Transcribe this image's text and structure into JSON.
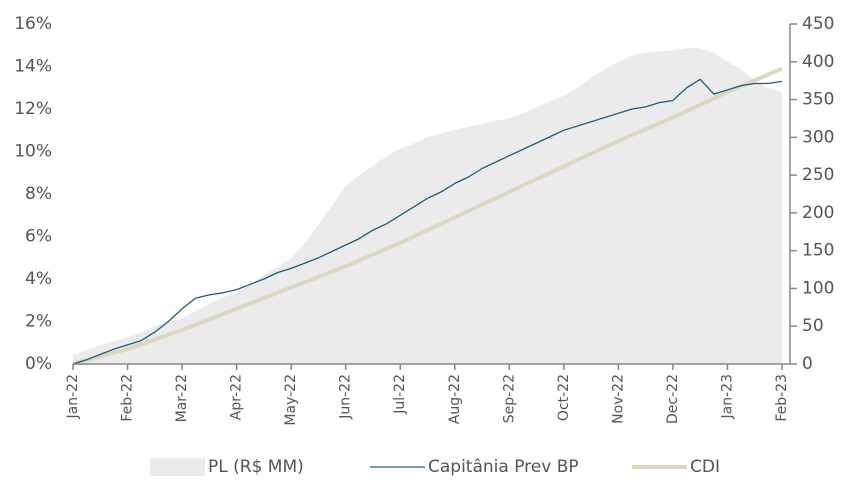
{
  "chart_data": {
    "type": "line",
    "categories": [
      "Jan-22",
      null,
      null,
      null,
      "Feb-22",
      null,
      null,
      null,
      "Mar-22",
      null,
      null,
      null,
      "Apr-22",
      null,
      null,
      null,
      "May-22",
      null,
      null,
      null,
      "Jun-22",
      null,
      null,
      null,
      "Jul-22",
      null,
      null,
      null,
      "Aug-22",
      null,
      null,
      null,
      "Sep-22",
      null,
      null,
      null,
      "Oct-22",
      null,
      null,
      null,
      "Nov-22",
      null,
      null,
      null,
      "Dec-22",
      null,
      null,
      null,
      "Jan-23",
      null,
      null,
      null,
      "Feb-23"
    ],
    "series": [
      {
        "name": "PL (R$ MM)",
        "type": "area",
        "axis": "y2",
        "color": "#ebebeb",
        "values": [
          12,
          18,
          25,
          30,
          35,
          42,
          50,
          55,
          60,
          70,
          80,
          88,
          95,
          105,
          118,
          128,
          140,
          160,
          185,
          210,
          235,
          250,
          262,
          275,
          285,
          292,
          300,
          305,
          310,
          314,
          318,
          322,
          325,
          332,
          340,
          348,
          355,
          366,
          378,
          390,
          400,
          408,
          412,
          414,
          415,
          418,
          418,
          412,
          400,
          390,
          375,
          365,
          360
        ]
      },
      {
        "name": "Capitânia Prev BP",
        "type": "line",
        "color": "#1f5c7a",
        "values": [
          0,
          0.2,
          0.45,
          0.7,
          0.9,
          1.1,
          1.5,
          2.0,
          2.6,
          3.1,
          3.25,
          3.35,
          3.5,
          3.75,
          4.0,
          4.3,
          4.5,
          4.75,
          5.0,
          5.3,
          5.6,
          5.9,
          6.3,
          6.6,
          7.0,
          7.4,
          7.8,
          8.1,
          8.5,
          8.8,
          9.2,
          9.5,
          9.8,
          10.1,
          10.4,
          10.7,
          11.0,
          11.2,
          11.4,
          11.6,
          11.8,
          12.0,
          12.1,
          12.3,
          12.4,
          13.0,
          13.4,
          12.7,
          12.9,
          13.1,
          13.2,
          13.2,
          13.3
        ]
      },
      {
        "name": "CDI",
        "type": "line",
        "color": "#ddd6c1",
        "values": [
          0,
          0.18,
          0.35,
          0.53,
          0.7,
          0.92,
          1.15,
          1.38,
          1.6,
          1.85,
          2.1,
          2.35,
          2.6,
          2.85,
          3.1,
          3.35,
          3.6,
          3.85,
          4.1,
          4.35,
          4.6,
          4.88,
          5.15,
          5.43,
          5.7,
          6.0,
          6.3,
          6.6,
          6.9,
          7.2,
          7.5,
          7.8,
          8.1,
          8.4,
          8.7,
          9.0,
          9.3,
          9.6,
          9.9,
          10.2,
          10.5,
          10.78,
          11.05,
          11.33,
          11.6,
          11.9,
          12.2,
          12.5,
          12.8,
          13.08,
          13.35,
          13.63,
          13.9
        ]
      }
    ],
    "ylim": [
      0,
      16
    ],
    "yticks": [
      {
        "value": 0,
        "label": "0%"
      },
      {
        "value": 2,
        "label": "2%"
      },
      {
        "value": 4,
        "label": "4%"
      },
      {
        "value": 6,
        "label": "6%"
      },
      {
        "value": 8,
        "label": "8%"
      },
      {
        "value": 10,
        "label": "10%"
      },
      {
        "value": 12,
        "label": "12%"
      },
      {
        "value": 14,
        "label": "14%"
      },
      {
        "value": 16,
        "label": "16%"
      }
    ],
    "y2lim": [
      0,
      450
    ],
    "y2ticks": [
      0,
      50,
      100,
      150,
      200,
      250,
      300,
      350,
      400,
      450
    ],
    "grid": false
  }
}
